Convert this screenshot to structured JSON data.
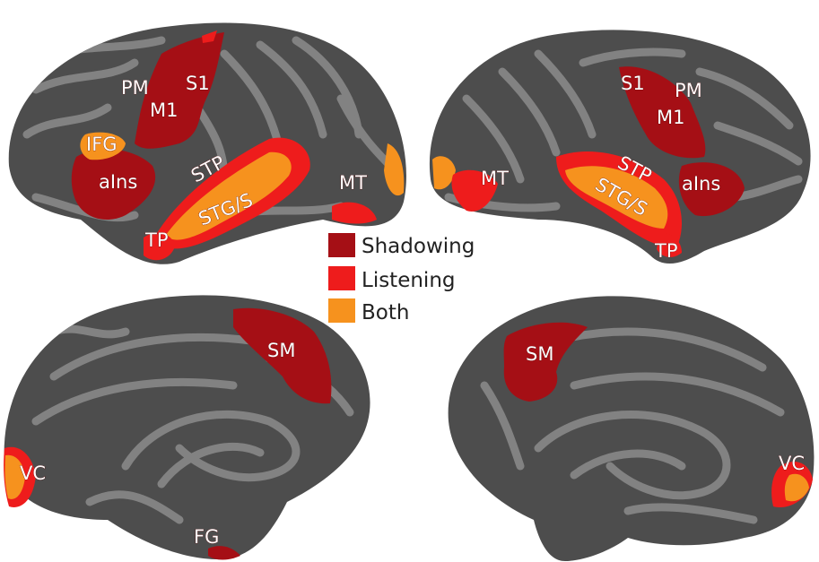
{
  "colors": {
    "shadowing": "#a50f15",
    "listening": "#ee1c1c",
    "both": "#f6921e",
    "cortex_dark": "#4d4d4d",
    "cortex_light": "#808080"
  },
  "legend": [
    {
      "label": "Shadowing",
      "color_key": "shadowing"
    },
    {
      "label": "Listening",
      "color_key": "listening"
    },
    {
      "label": "Both",
      "color_key": "both"
    }
  ],
  "labels": {
    "left_lateral": {
      "pm": "PM",
      "s1": "S1",
      "m1": "M1",
      "ifg": "IFG",
      "ains": "aIns",
      "stp": "STP",
      "stgs": "STG/S",
      "mt": "MT",
      "tp": "TP"
    },
    "right_lateral": {
      "s1": "S1",
      "pm": "PM",
      "m1": "M1",
      "mt": "MT",
      "stp": "STP",
      "stgs": "STG/S",
      "ains": "aIns",
      "tp": "TP"
    },
    "left_medial": {
      "sm": "SM",
      "vc": "VC",
      "fg": "FG"
    },
    "right_medial": {
      "sm": "SM",
      "vc": "VC"
    }
  }
}
